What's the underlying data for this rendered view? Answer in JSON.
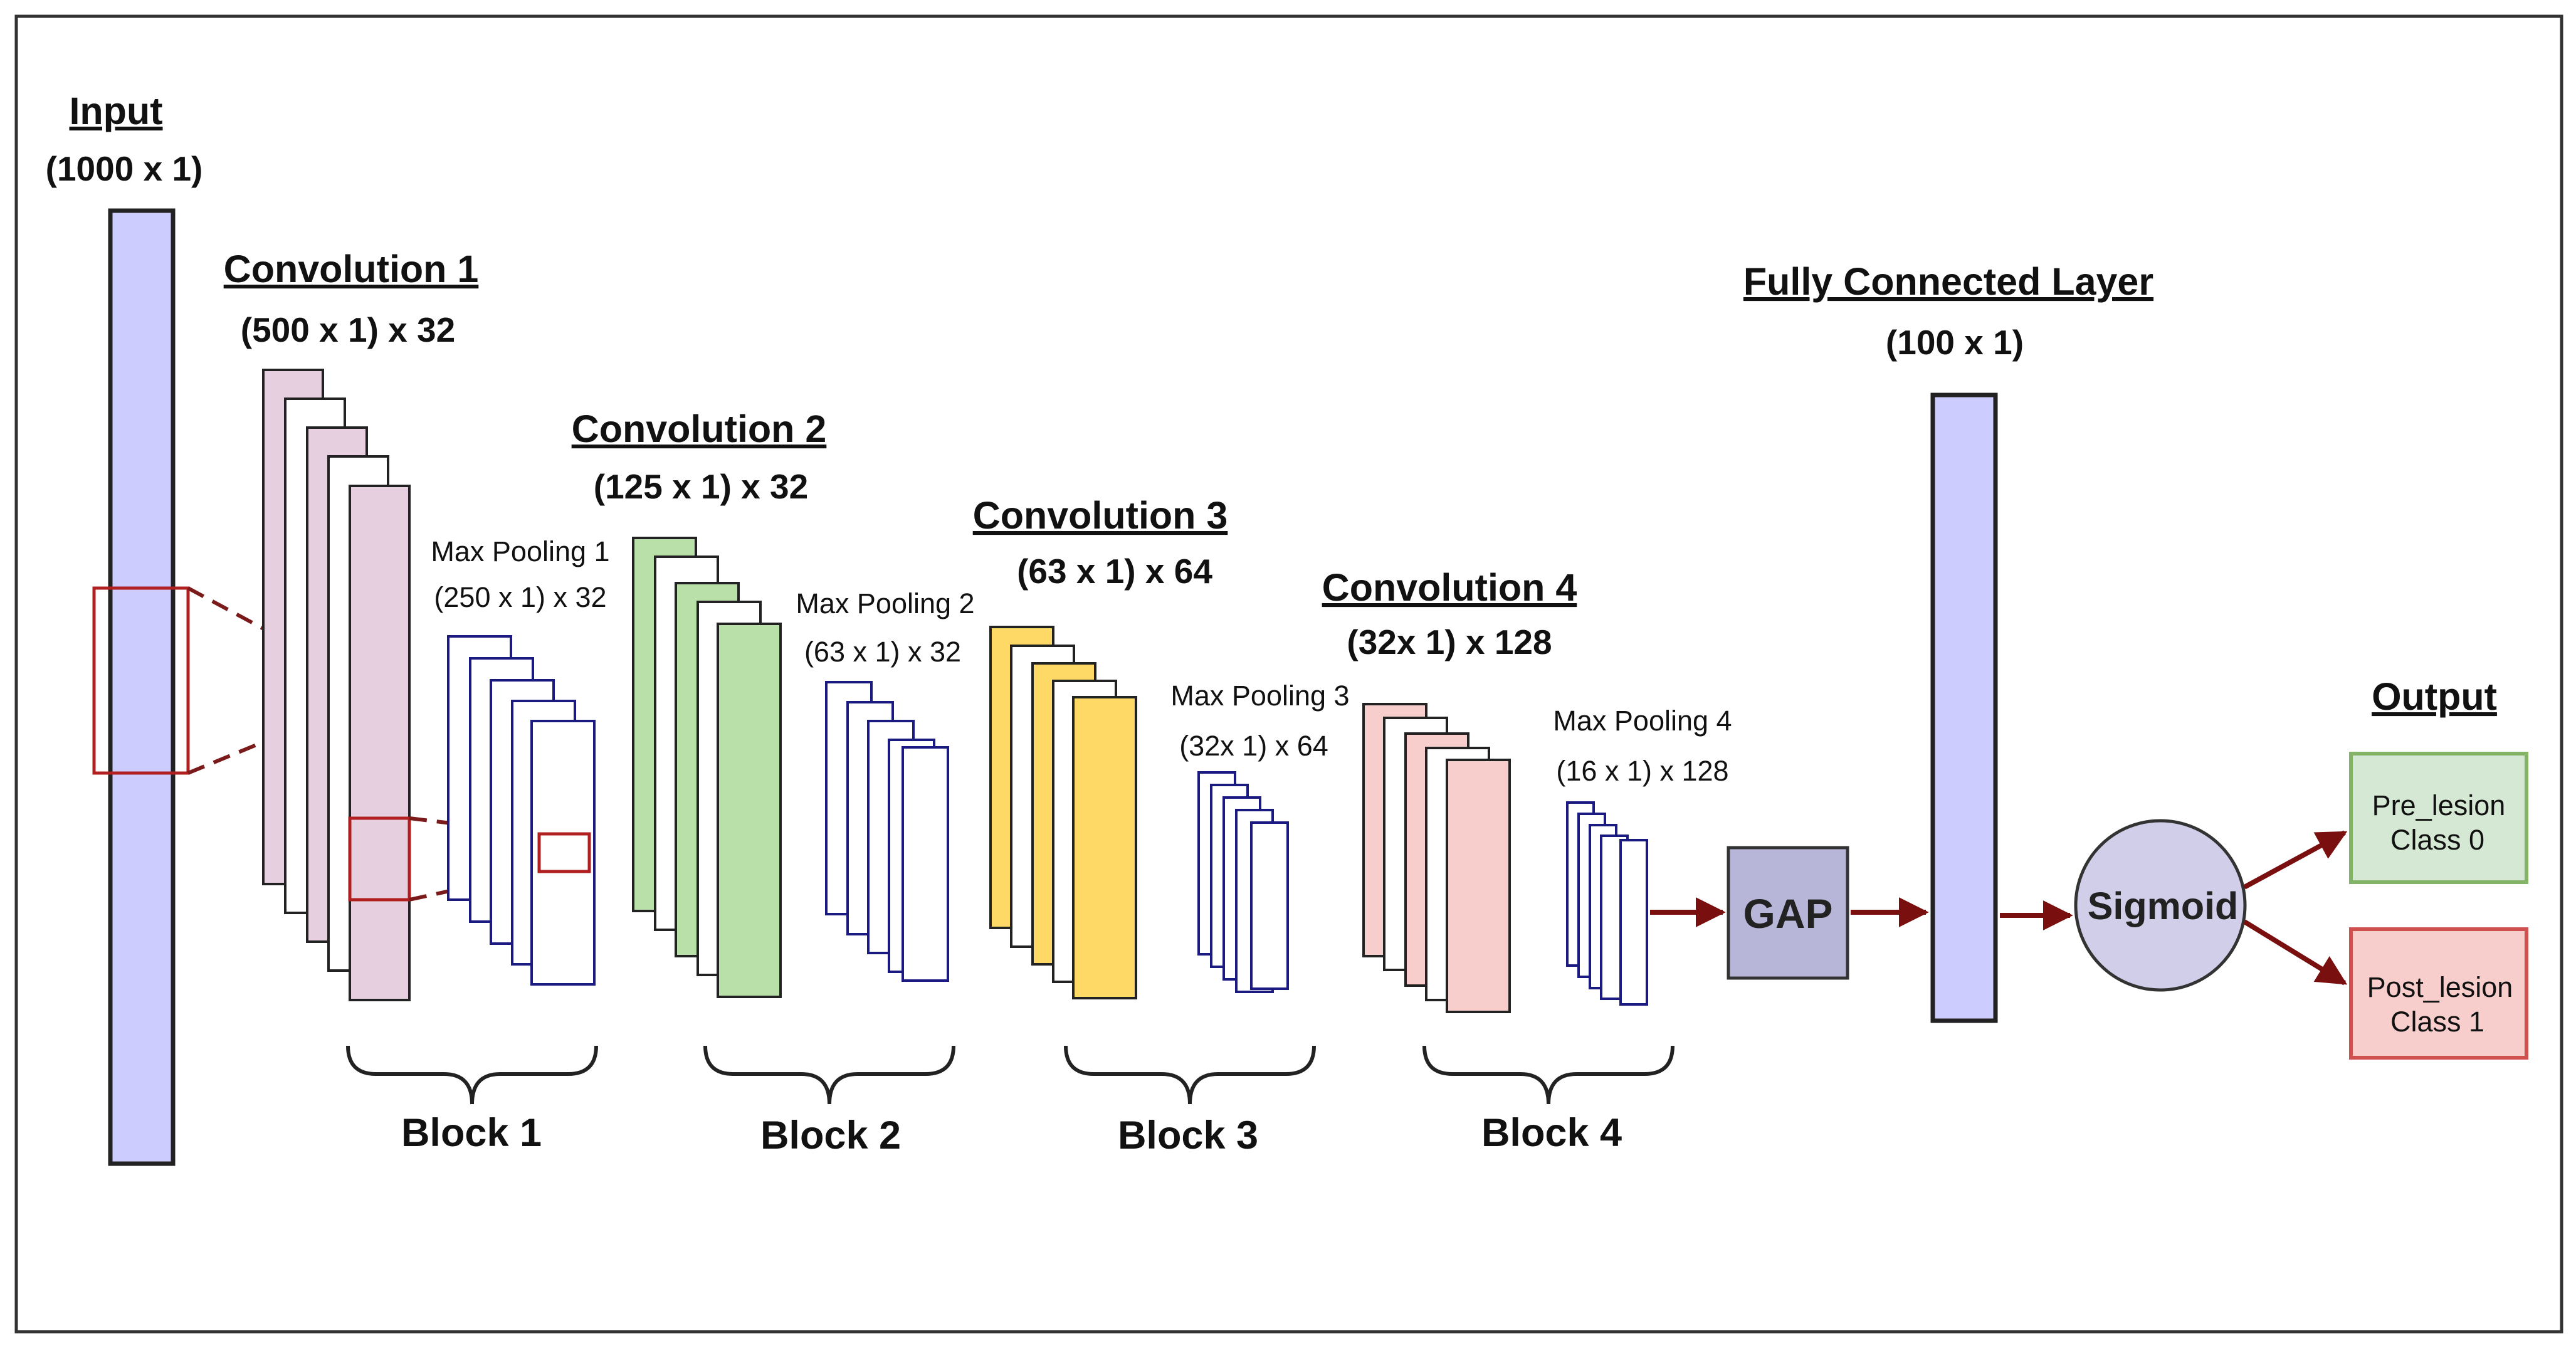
{
  "diagram": {
    "input": {
      "title": "Input",
      "dims": "(1000 x 1)"
    },
    "conv1": {
      "title": "Convolution 1",
      "dims": "(500 x 1) x 32"
    },
    "pool1": {
      "title": "Max Pooling 1",
      "dims": "(250 x 1) x 32"
    },
    "conv2": {
      "title": "Convolution 2",
      "dims": "(125 x 1) x 32"
    },
    "pool2": {
      "title": "Max Pooling 2",
      "dims": "(63 x 1) x 32"
    },
    "conv3": {
      "title": "Convolution 3",
      "dims": "(63 x 1) x 64"
    },
    "pool3": {
      "title": "Max Pooling 3",
      "dims": "(32x 1) x 64"
    },
    "conv4": {
      "title": "Convolution 4",
      "dims": "(32x 1) x 128"
    },
    "pool4": {
      "title": "Max Pooling 4",
      "dims": "(16 x 1) x 128"
    },
    "blocks": [
      "Block 1",
      "Block 2",
      "Block 3",
      "Block 4"
    ],
    "gap": "GAP",
    "fc": {
      "title": "Fully Connected Layer",
      "dims": "(100 x 1)"
    },
    "sigmoid": "Sigmoid",
    "output": {
      "title": "Output",
      "classes": [
        {
          "name": "Pre_lesion",
          "label": "Class  0"
        },
        {
          "name": "Post_lesion",
          "label": "Class  1"
        }
      ]
    }
  },
  "colors": {
    "input_layer": "#ccccff",
    "fc_layer": "#ccccff",
    "conv1": "#e6d0e0",
    "conv2": "#b8e0a8",
    "conv3": "#ffd966",
    "conv4": "#f8cecc",
    "pool": "#ffffff",
    "gap": "#b8b6d8",
    "sigmoid": "#d0cee8",
    "class0": "#d5e8d4",
    "class0_border": "#82b366",
    "class1": "#f8cecc",
    "class1_border": "#d05050",
    "arrow": "#7a0f0f",
    "highlight": "#b02020"
  }
}
